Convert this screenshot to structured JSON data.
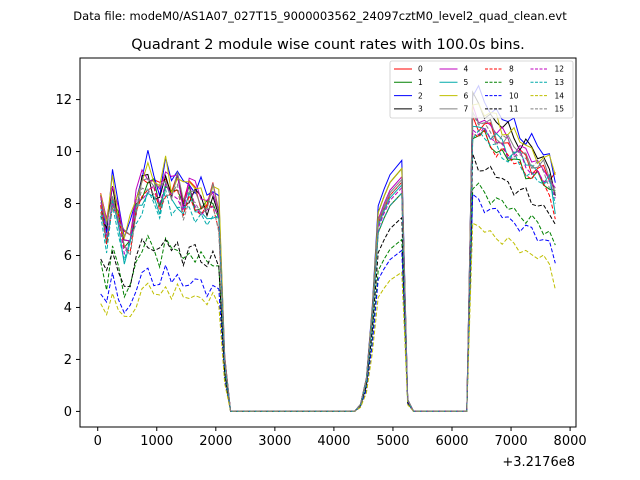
{
  "suptitle": "Data file: modeM0/AS1A07_027T15_9000003562_24097cztM0_level2_quad_clean.evt",
  "chart_data": {
    "type": "line",
    "title": "Quadrant 2 module wise count rates with 100.0s bins.",
    "xlabel": "",
    "ylabel": "",
    "x_offset_label": "+3.2176e8",
    "xlim": [
      -300,
      8100
    ],
    "ylim": [
      -0.6,
      13.6
    ],
    "x_ticks": [
      0,
      1000,
      2000,
      3000,
      4000,
      5000,
      6000,
      7000,
      8000
    ],
    "x_tick_labels": [
      "0",
      "1000",
      "2000",
      "3000",
      "4000",
      "5000",
      "6000",
      "7000",
      "8000"
    ],
    "y_ticks": [
      0,
      2,
      4,
      6,
      8,
      10,
      12
    ],
    "y_tick_labels": [
      "0",
      "2",
      "4",
      "6",
      "8",
      "10",
      "12"
    ],
    "legend_position": "top-right",
    "legend_columns": 4,
    "x_segments": [
      [
        50,
        150,
        250,
        350,
        450,
        550,
        650,
        750,
        850,
        950,
        1050,
        1150,
        1250,
        1350,
        1450,
        1550,
        1650,
        1750,
        1850,
        1950,
        2050,
        2150,
        2250
      ],
      [
        2250,
        4350
      ],
      [
        4350,
        4450,
        4550,
        4650,
        4750,
        4850,
        4950,
        5050,
        5150,
        5250,
        5350
      ],
      [
        5350,
        6250
      ],
      [
        6250,
        6350,
        6450,
        6550,
        6650,
        6750,
        6850,
        6950,
        7050,
        7150,
        7250,
        7350,
        7450,
        7550,
        7650,
        7750
      ]
    ],
    "series": [
      {
        "name": "0",
        "color": "#ff0000",
        "dash": false,
        "levels": [
          8.2,
          8.4,
          6.8
        ],
        "end": 9.2
      },
      {
        "name": "1",
        "color": "#008000",
        "dash": false,
        "levels": [
          7.9,
          8.0,
          6.6
        ],
        "end": 8.5
      },
      {
        "name": "2",
        "color": "#0000ff",
        "dash": false,
        "levels": [
          8.5,
          9.2,
          6.8
        ],
        "end": 8.8
      },
      {
        "name": "3",
        "color": "#000000",
        "dash": false,
        "levels": [
          8.0,
          8.9,
          6.5
        ],
        "end": 8.3
      },
      {
        "name": "4",
        "color": "#bf00bf",
        "dash": false,
        "levels": [
          8.3,
          8.6,
          6.9
        ],
        "end": 8.6
      },
      {
        "name": "5",
        "color": "#00aaaa",
        "dash": false,
        "levels": [
          7.6,
          8.3,
          6.2
        ],
        "end": 7.6
      },
      {
        "name": "6",
        "color": "#bfbf00",
        "dash": false,
        "levels": [
          8.4,
          8.9,
          7.3
        ],
        "end": 9.1
      },
      {
        "name": "7",
        "color": "#808080",
        "dash": false,
        "levels": [
          8.1,
          8.5,
          6.7
        ],
        "end": 8.4
      },
      {
        "name": "8",
        "color": "#ff0000",
        "dash": true,
        "levels": [
          7.7,
          8.0,
          6.1
        ],
        "end": 7.4
      },
      {
        "name": "9",
        "color": "#008000",
        "dash": true,
        "levels": [
          5.8,
          6.3,
          4.9
        ],
        "end": 6.4
      },
      {
        "name": "10",
        "color": "#0000ff",
        "dash": true,
        "levels": [
          4.8,
          5.9,
          4.1
        ],
        "end": 5.7
      },
      {
        "name": "11",
        "color": "#000000",
        "dash": true,
        "levels": [
          5.9,
          7.1,
          4.9
        ],
        "end": 7.2
      },
      {
        "name": "12",
        "color": "#bf00bf",
        "dash": true,
        "levels": [
          7.8,
          8.2,
          6.3
        ],
        "end": 8.2
      },
      {
        "name": "13",
        "color": "#00aaaa",
        "dash": true,
        "levels": [
          7.4,
          8.0,
          6.1
        ],
        "end": 8.0
      },
      {
        "name": "14",
        "color": "#bfbf00",
        "dash": true,
        "levels": [
          4.3,
          5.1,
          3.9
        ],
        "end": 4.7
      },
      {
        "name": "15",
        "color": "#808080",
        "dash": true,
        "levels": [
          7.7,
          8.4,
          6.4
        ],
        "end": 8.6
      }
    ]
  }
}
